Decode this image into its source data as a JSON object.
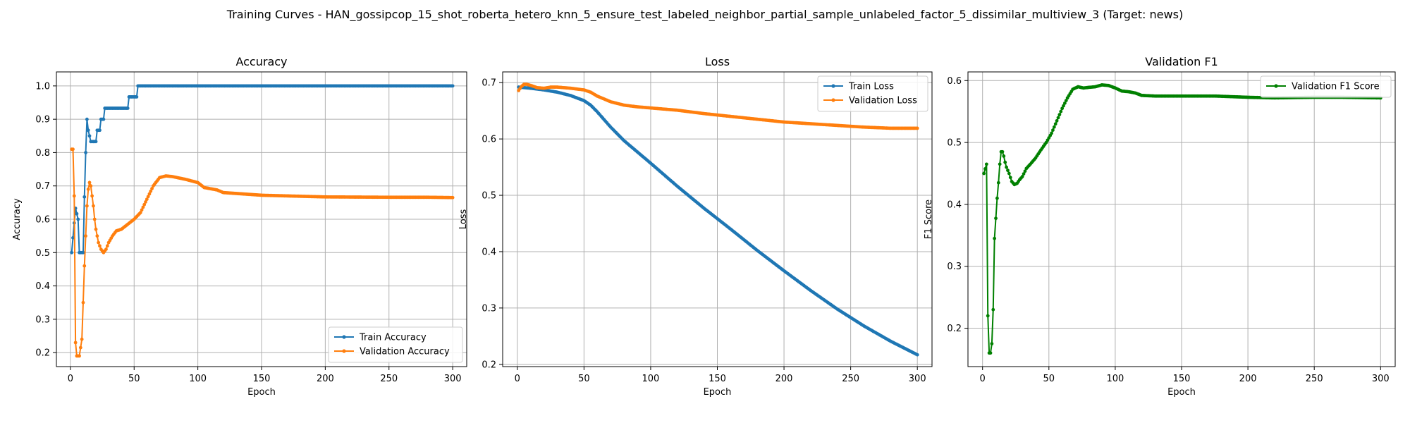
{
  "suptitle": "Training Curves - HAN_gossipcop_15_shot_roberta_hetero_knn_5_ensure_test_labeled_neighbor_partial_sample_unlabeled_factor_5_dissimilar_multiview_3 (Target: news)",
  "colors": {
    "blue": "#1f77b4",
    "orange": "#ff7f0e",
    "green": "#008000",
    "grid": "#b0b0b0"
  },
  "chart_data": [
    {
      "type": "line",
      "title": "Accuracy",
      "xlabel": "Epoch",
      "ylabel": "Accuracy",
      "xlim": [
        -11,
        311
      ],
      "ylim": [
        0.158,
        1.042
      ],
      "xticks": [
        0,
        50,
        100,
        150,
        200,
        250,
        300
      ],
      "yticks": [
        0.2,
        0.3,
        0.4,
        0.5,
        0.6,
        0.7,
        0.8,
        0.9,
        1.0
      ],
      "ytick_labels": [
        "0.2",
        "0.3",
        "0.4",
        "0.5",
        "0.6",
        "0.7",
        "0.8",
        "0.9",
        "1.0"
      ],
      "grid": true,
      "legend": "lower-right",
      "series": [
        {
          "name": "Train Accuracy",
          "color": "#1f77b4",
          "points": [
            [
              1,
              0.5
            ],
            [
              4,
              0.633
            ],
            [
              6,
              0.6
            ],
            [
              7,
              0.5
            ],
            [
              10,
              0.5
            ],
            [
              11,
              0.667
            ],
            [
              12,
              0.8
            ],
            [
              13,
              0.9
            ],
            [
              14,
              0.867
            ],
            [
              16,
              0.833
            ],
            [
              20,
              0.833
            ],
            [
              21,
              0.867
            ],
            [
              23,
              0.867
            ],
            [
              24,
              0.9
            ],
            [
              26,
              0.9
            ],
            [
              27,
              0.933
            ],
            [
              45,
              0.933
            ],
            [
              46,
              0.967
            ],
            [
              52,
              0.967
            ],
            [
              53,
              1.0
            ],
            [
              300,
              1.0
            ]
          ]
        },
        {
          "name": "Validation Accuracy",
          "color": "#ff7f0e",
          "points": [
            [
              1,
              0.81
            ],
            [
              2,
              0.81
            ],
            [
              3,
              0.67
            ],
            [
              4,
              0.23
            ],
            [
              5,
              0.19
            ],
            [
              7,
              0.19
            ],
            [
              9,
              0.24
            ],
            [
              10,
              0.35
            ],
            [
              11,
              0.46
            ],
            [
              12,
              0.55
            ],
            [
              13,
              0.64
            ],
            [
              14,
              0.69
            ],
            [
              15,
              0.71
            ],
            [
              16,
              0.7
            ],
            [
              17,
              0.67
            ],
            [
              18,
              0.64
            ],
            [
              19,
              0.6
            ],
            [
              20,
              0.57
            ],
            [
              21,
              0.55
            ],
            [
              22,
              0.53
            ],
            [
              24,
              0.51
            ],
            [
              26,
              0.5
            ],
            [
              28,
              0.51
            ],
            [
              30,
              0.53
            ],
            [
              33,
              0.55
            ],
            [
              36,
              0.565
            ],
            [
              40,
              0.57
            ],
            [
              45,
              0.585
            ],
            [
              50,
              0.6
            ],
            [
              55,
              0.62
            ],
            [
              60,
              0.66
            ],
            [
              65,
              0.7
            ],
            [
              70,
              0.725
            ],
            [
              75,
              0.73
            ],
            [
              80,
              0.728
            ],
            [
              90,
              0.72
            ],
            [
              100,
              0.71
            ],
            [
              105,
              0.695
            ],
            [
              115,
              0.688
            ],
            [
              120,
              0.68
            ],
            [
              150,
              0.672
            ],
            [
              200,
              0.667
            ],
            [
              250,
              0.666
            ],
            [
              280,
              0.666
            ],
            [
              300,
              0.665
            ]
          ]
        }
      ]
    },
    {
      "type": "line",
      "title": "Loss",
      "xlabel": "Epoch",
      "ylabel": "Loss",
      "xlim": [
        -11,
        311
      ],
      "ylim": [
        0.196,
        0.719
      ],
      "xticks": [
        0,
        50,
        100,
        150,
        200,
        250,
        300
      ],
      "yticks": [
        0.2,
        0.3,
        0.4,
        0.5,
        0.6,
        0.7
      ],
      "ytick_labels": [
        "0.2",
        "0.3",
        "0.4",
        "0.5",
        "0.6",
        "0.7"
      ],
      "grid": true,
      "legend": "top-right",
      "series": [
        {
          "name": "Train Loss",
          "color": "#1f77b4",
          "points": [
            [
              1,
              0.692
            ],
            [
              10,
              0.69
            ],
            [
              20,
              0.687
            ],
            [
              30,
              0.683
            ],
            [
              40,
              0.677
            ],
            [
              50,
              0.668
            ],
            [
              55,
              0.66
            ],
            [
              60,
              0.648
            ],
            [
              70,
              0.621
            ],
            [
              80,
              0.597
            ],
            [
              90,
              0.577
            ],
            [
              100,
              0.557
            ],
            [
              120,
              0.516
            ],
            [
              140,
              0.477
            ],
            [
              160,
              0.44
            ],
            [
              180,
              0.402
            ],
            [
              200,
              0.366
            ],
            [
              220,
              0.331
            ],
            [
              240,
              0.298
            ],
            [
              260,
              0.268
            ],
            [
              280,
              0.241
            ],
            [
              300,
              0.217
            ]
          ]
        },
        {
          "name": "Validation Loss",
          "color": "#ff7f0e",
          "points": [
            [
              1,
              0.686
            ],
            [
              3,
              0.693
            ],
            [
              5,
              0.697
            ],
            [
              7,
              0.697
            ],
            [
              10,
              0.695
            ],
            [
              15,
              0.691
            ],
            [
              20,
              0.69
            ],
            [
              25,
              0.692
            ],
            [
              30,
              0.692
            ],
            [
              40,
              0.69
            ],
            [
              50,
              0.687
            ],
            [
              55,
              0.683
            ],
            [
              60,
              0.676
            ],
            [
              70,
              0.666
            ],
            [
              80,
              0.66
            ],
            [
              90,
              0.657
            ],
            [
              100,
              0.655
            ],
            [
              120,
              0.651
            ],
            [
              140,
              0.645
            ],
            [
              160,
              0.64
            ],
            [
              180,
              0.635
            ],
            [
              200,
              0.63
            ],
            [
              220,
              0.627
            ],
            [
              240,
              0.624
            ],
            [
              260,
              0.621
            ],
            [
              280,
              0.619
            ],
            [
              300,
              0.619
            ]
          ]
        }
      ]
    },
    {
      "type": "line",
      "title": "Validation F1",
      "xlabel": "Epoch",
      "ylabel": "F1 Score",
      "xlim": [
        -11,
        311
      ],
      "ylim": [
        0.138,
        0.614
      ],
      "xticks": [
        0,
        50,
        100,
        150,
        200,
        250,
        300
      ],
      "yticks": [
        0.2,
        0.3,
        0.4,
        0.5,
        0.6
      ],
      "ytick_labels": [
        "0.2",
        "0.3",
        "0.4",
        "0.5",
        "0.6"
      ],
      "grid": true,
      "legend": "top-right",
      "series": [
        {
          "name": "Validation F1 Score",
          "color": "#008000",
          "points": [
            [
              1,
              0.45
            ],
            [
              3,
              0.465
            ],
            [
              4,
              0.22
            ],
            [
              5,
              0.16
            ],
            [
              6,
              0.16
            ],
            [
              7,
              0.175
            ],
            [
              8,
              0.23
            ],
            [
              9,
              0.345
            ],
            [
              11,
              0.41
            ],
            [
              12,
              0.435
            ],
            [
              13,
              0.465
            ],
            [
              14,
              0.485
            ],
            [
              15,
              0.485
            ],
            [
              16,
              0.478
            ],
            [
              17,
              0.468
            ],
            [
              18,
              0.46
            ],
            [
              20,
              0.45
            ],
            [
              22,
              0.437
            ],
            [
              24,
              0.432
            ],
            [
              26,
              0.434
            ],
            [
              28,
              0.44
            ],
            [
              30,
              0.445
            ],
            [
              33,
              0.458
            ],
            [
              36,
              0.465
            ],
            [
              40,
              0.475
            ],
            [
              44,
              0.488
            ],
            [
              48,
              0.5
            ],
            [
              52,
              0.515
            ],
            [
              56,
              0.535
            ],
            [
              60,
              0.555
            ],
            [
              64,
              0.572
            ],
            [
              68,
              0.586
            ],
            [
              72,
              0.59
            ],
            [
              76,
              0.588
            ],
            [
              80,
              0.589
            ],
            [
              85,
              0.59
            ],
            [
              90,
              0.593
            ],
            [
              95,
              0.592
            ],
            [
              100,
              0.588
            ],
            [
              105,
              0.583
            ],
            [
              110,
              0.582
            ],
            [
              115,
              0.58
            ],
            [
              120,
              0.576
            ],
            [
              130,
              0.575
            ],
            [
              150,
              0.575
            ],
            [
              175,
              0.575
            ],
            [
              200,
              0.573
            ],
            [
              220,
              0.572
            ],
            [
              250,
              0.573
            ],
            [
              270,
              0.573
            ],
            [
              300,
              0.572
            ]
          ]
        }
      ]
    }
  ]
}
